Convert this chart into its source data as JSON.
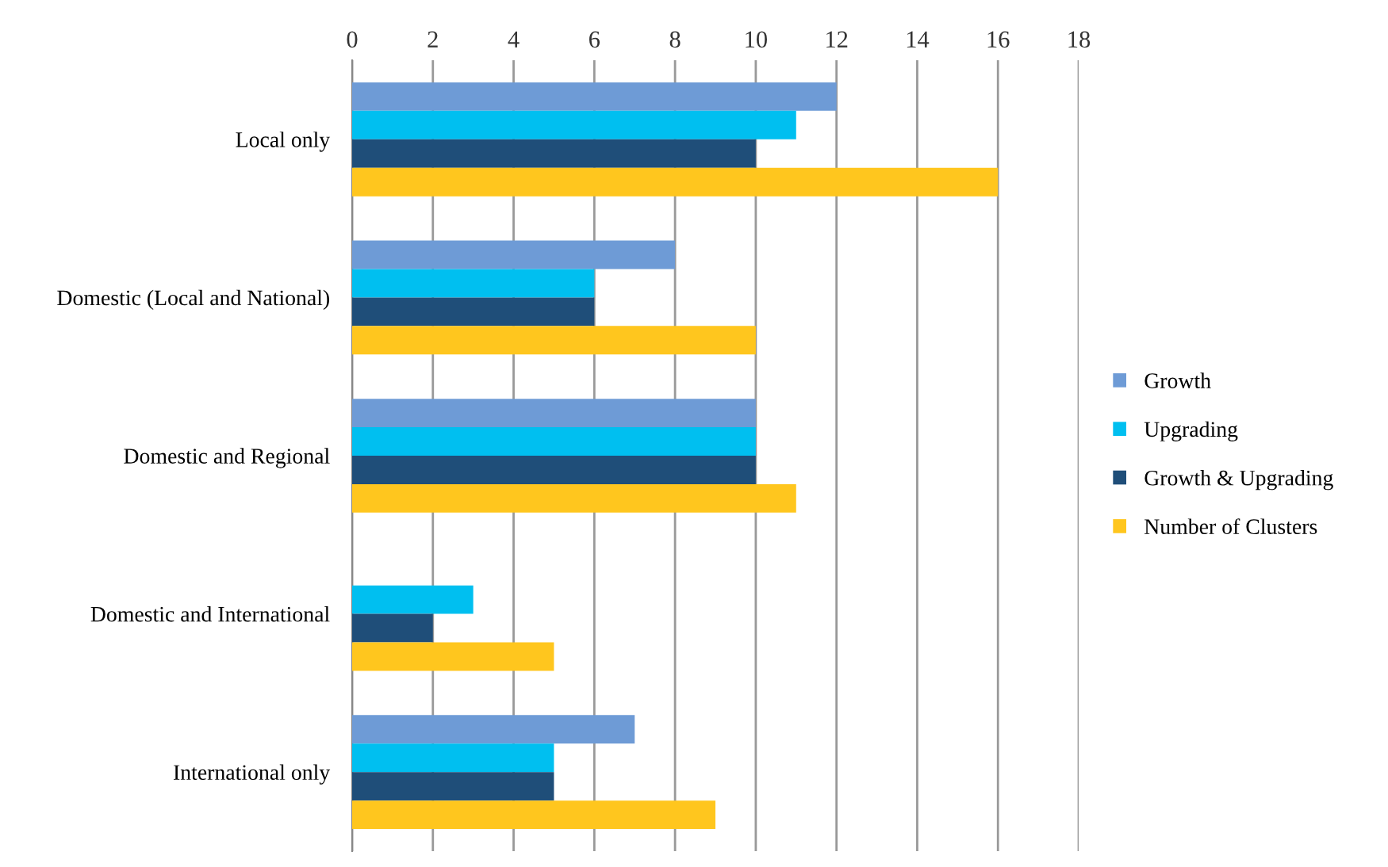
{
  "chart_data": {
    "type": "bar",
    "orientation": "horizontal",
    "categories": [
      "Local only",
      "Domestic (Local and National)",
      "Domestic and Regional",
      "Domestic and International",
      "International only"
    ],
    "series": [
      {
        "name": "Growth",
        "color": "#6e9bd6",
        "values": [
          12,
          8,
          10,
          0,
          7
        ]
      },
      {
        "name": "Upgrading",
        "color": "#00bff0",
        "values": [
          11,
          6,
          10,
          3,
          5
        ]
      },
      {
        "name": "Growth & Upgrading",
        "color": "#1f4e79",
        "values": [
          10,
          6,
          10,
          2,
          5
        ]
      },
      {
        "name": "Number of Clusters",
        "color": "#ffc61e",
        "values": [
          16,
          10,
          11,
          5,
          9
        ]
      }
    ],
    "xlim": [
      0,
      18
    ],
    "xticks": [
      0,
      2,
      4,
      6,
      8,
      10,
      12,
      14,
      16,
      18
    ],
    "grid": "x",
    "legend": "right"
  }
}
